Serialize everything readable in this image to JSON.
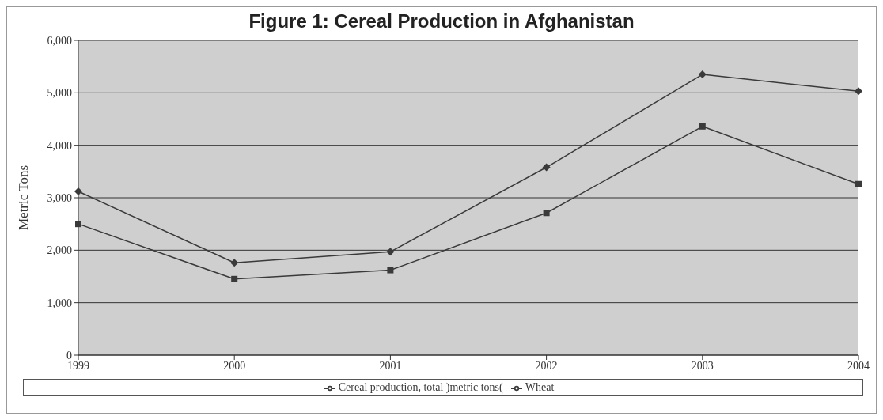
{
  "chart_data": {
    "type": "line",
    "title": "Figure 1: Cereal Production in Afghanistan",
    "ylabel": "Metric Tons",
    "categories": [
      "1999",
      "2000",
      "2001",
      "2002",
      "2003",
      "2004"
    ],
    "series": [
      {
        "name": "Cereal production, total )metric tons(",
        "color": "#3a3a3a",
        "marker": "diamond",
        "values": [
          3120,
          1760,
          1970,
          3580,
          5350,
          5030
        ]
      },
      {
        "name": "Wheat",
        "color": "#3a3a3a",
        "marker": "square",
        "values": [
          2500,
          1450,
          1620,
          2710,
          4360,
          3260
        ]
      }
    ],
    "ylim": [
      0,
      6000
    ],
    "yticks": [
      {
        "value": 0,
        "label": "0"
      },
      {
        "value": 1000,
        "label": "1,000"
      },
      {
        "value": 2000,
        "label": "2,000"
      },
      {
        "value": 3000,
        "label": "3,000"
      },
      {
        "value": 4000,
        "label": "4,000"
      },
      {
        "value": 5000,
        "label": "5,000"
      },
      {
        "value": 6000,
        "label": "6,000"
      }
    ],
    "grid": "y",
    "legend": "bottom",
    "line_style": "solid"
  }
}
